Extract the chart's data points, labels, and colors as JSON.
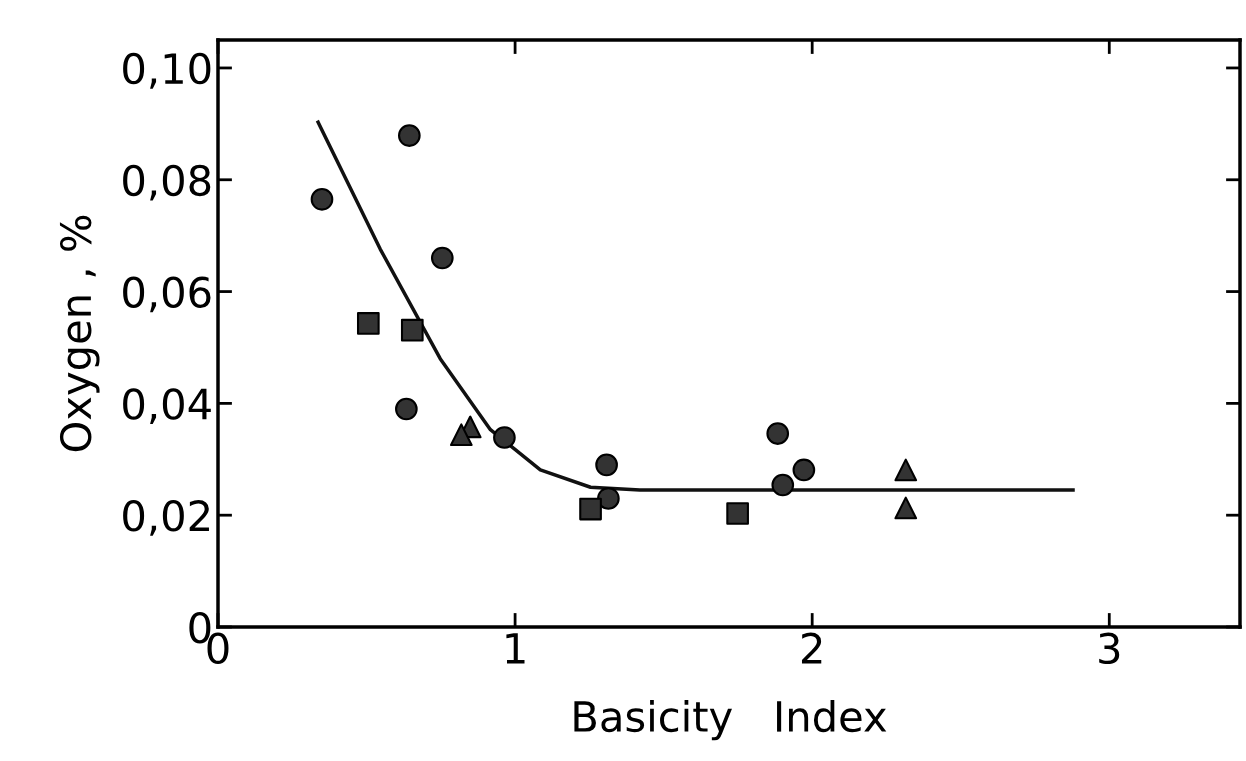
{
  "chart_data": {
    "type": "scatter",
    "xlabel": "Basicity   Index",
    "ylabel": "Oxygen , %",
    "xlim": [
      0,
      3.44
    ],
    "ylim": [
      0,
      0.105
    ],
    "xticks": [
      0,
      1,
      2,
      3
    ],
    "yticks": [
      {
        "value": 0,
        "label": "0"
      },
      {
        "value": 0.02,
        "label": "0,02"
      },
      {
        "value": 0.04,
        "label": "0,04"
      },
      {
        "value": 0.06,
        "label": "0,06"
      },
      {
        "value": 0.08,
        "label": "0,08"
      },
      {
        "value": 0.1,
        "label": "0,10"
      }
    ],
    "grid": false,
    "series": [
      {
        "marker": "circle",
        "color": "#333333",
        "x": [
          0.35,
          0.644,
          0.755,
          0.634,
          0.964,
          1.308,
          1.314,
          1.884,
          1.901,
          1.972
        ],
        "values": [
          0.0765,
          0.0879,
          0.066,
          0.039,
          0.0339,
          0.029,
          0.023,
          0.0346,
          0.0254,
          0.0281
        ]
      },
      {
        "marker": "square",
        "color": "#333333",
        "x": [
          0.506,
          0.654,
          1.254,
          1.749
        ],
        "values": [
          0.0543,
          0.0531,
          0.0211,
          0.0203
        ]
      },
      {
        "marker": "triangle",
        "color": "#333333",
        "x": [
          0.849,
          0.819,
          2.315,
          2.315
        ],
        "values": [
          0.0358,
          0.0344,
          0.0281,
          0.0213
        ]
      },
      {
        "type": "line",
        "marker": "none",
        "line_style": "solid",
        "color": "#111111",
        "x": [
          0.337,
          0.546,
          0.748,
          0.917,
          1.085,
          1.254,
          1.42,
          2.878
        ],
        "values": [
          0.0903,
          0.0676,
          0.048,
          0.0353,
          0.0281,
          0.025,
          0.0245,
          0.0245
        ]
      }
    ]
  }
}
